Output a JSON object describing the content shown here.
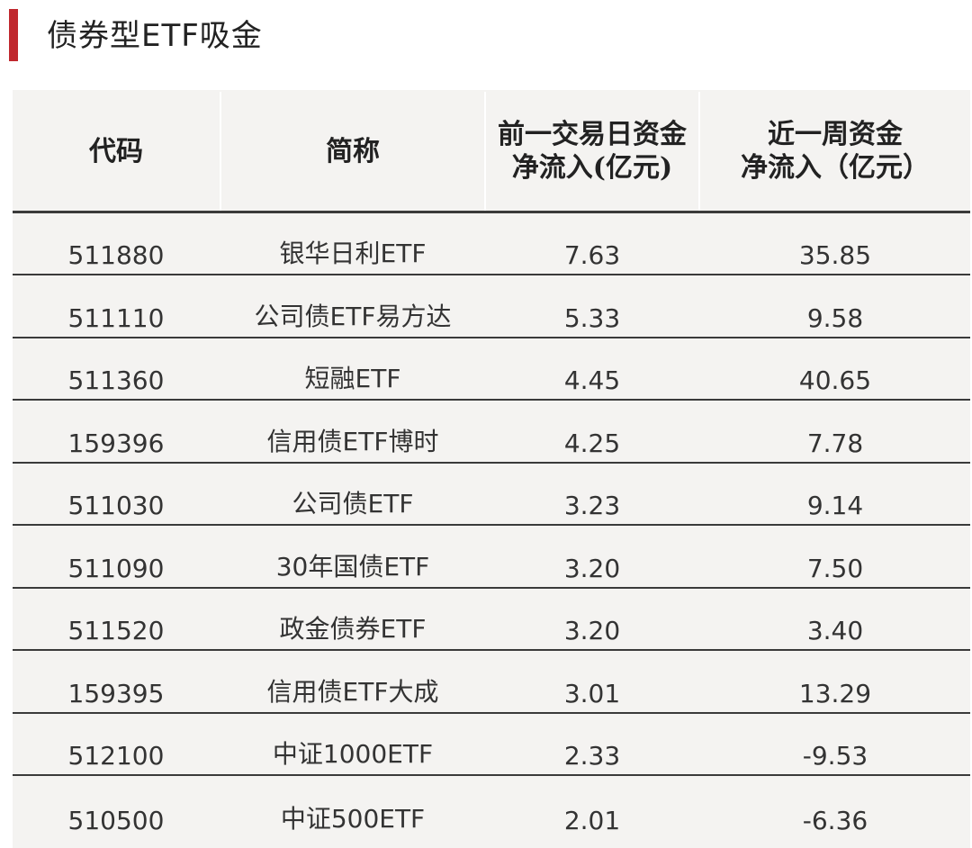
{
  "page": {
    "title": "债券型ETF吸金"
  },
  "colors": {
    "accent": "#c0272d",
    "table_bg": "#f4f3f1",
    "rule": "#3a3a3a",
    "text": "#333333"
  },
  "table": {
    "headers": [
      "代码",
      "简称",
      "前一交易日资金\n净流入(亿元)",
      "近一周资金\n净流入（亿元）"
    ],
    "rows": [
      {
        "code": "511880",
        "name": "银华日利ETF",
        "prev_day": "7.63",
        "week": "35.85"
      },
      {
        "code": "511110",
        "name": "公司债ETF易方达",
        "prev_day": "5.33",
        "week": "9.58"
      },
      {
        "code": "511360",
        "name": "短融ETF",
        "prev_day": "4.45",
        "week": "40.65"
      },
      {
        "code": "159396",
        "name": "信用债ETF博时",
        "prev_day": "4.25",
        "week": "7.78"
      },
      {
        "code": "511030",
        "name": "公司债ETF",
        "prev_day": "3.23",
        "week": "9.14"
      },
      {
        "code": "511090",
        "name": "30年国债ETF",
        "prev_day": "3.20",
        "week": "7.50"
      },
      {
        "code": "511520",
        "name": "政金债券ETF",
        "prev_day": "3.20",
        "week": "3.40"
      },
      {
        "code": "159395",
        "name": "信用债ETF大成",
        "prev_day": "3.01",
        "week": "13.29"
      },
      {
        "code": "512100",
        "name": "中证1000ETF",
        "prev_day": "2.33",
        "week": "-9.53"
      },
      {
        "code": "510500",
        "name": "中证500ETF",
        "prev_day": "2.01",
        "week": "-6.36"
      }
    ]
  }
}
